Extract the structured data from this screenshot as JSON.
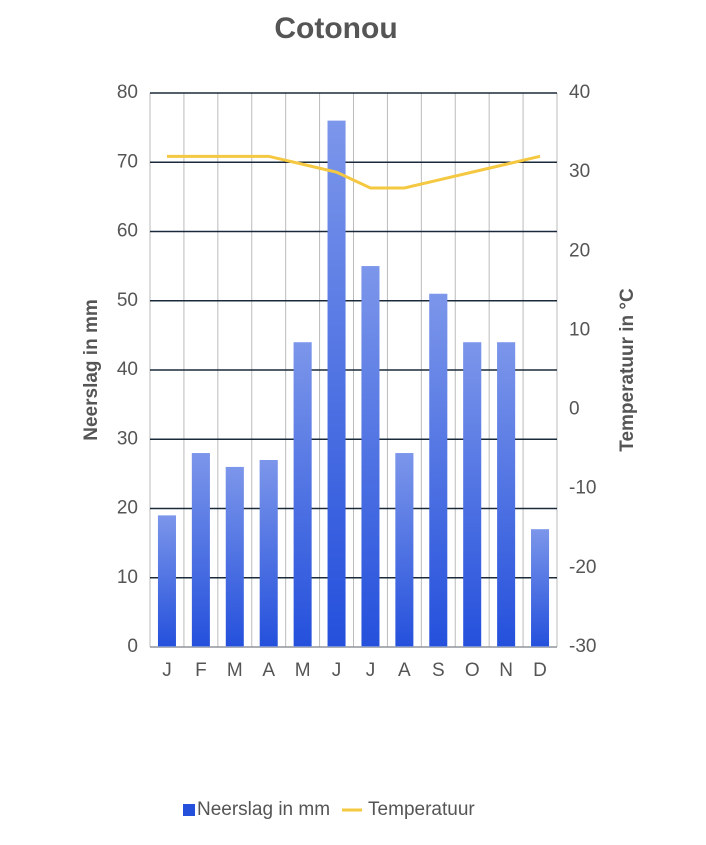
{
  "chart_data": {
    "type": "bar",
    "title": "Cotonou",
    "categories": [
      "J",
      "F",
      "M",
      "A",
      "M",
      "J",
      "J",
      "A",
      "S",
      "O",
      "N",
      "D"
    ],
    "series": [
      {
        "name": "Neerslag in mm",
        "type": "bar",
        "color": "#2450dc",
        "values": [
          19,
          28,
          26,
          27,
          44,
          76,
          55,
          28,
          51,
          44,
          44,
          17
        ]
      },
      {
        "name": "Temperatuur",
        "type": "line",
        "axis": "y2",
        "color": "#f5c842",
        "values": [
          32,
          32,
          32,
          32,
          31,
          30,
          28,
          28,
          29,
          30,
          31,
          32
        ]
      }
    ],
    "ylabel": "Neerslag in mm",
    "y2label": "Temperatuur in °C",
    "ylim": [
      0,
      80
    ],
    "yticks": [
      0,
      10,
      20,
      30,
      40,
      50,
      60,
      70,
      80
    ],
    "y2lim": [
      -30,
      40
    ],
    "y2ticks": [
      -30,
      -20,
      -10,
      0,
      10,
      20,
      30,
      40
    ],
    "grid": true,
    "legend": "bottom"
  }
}
